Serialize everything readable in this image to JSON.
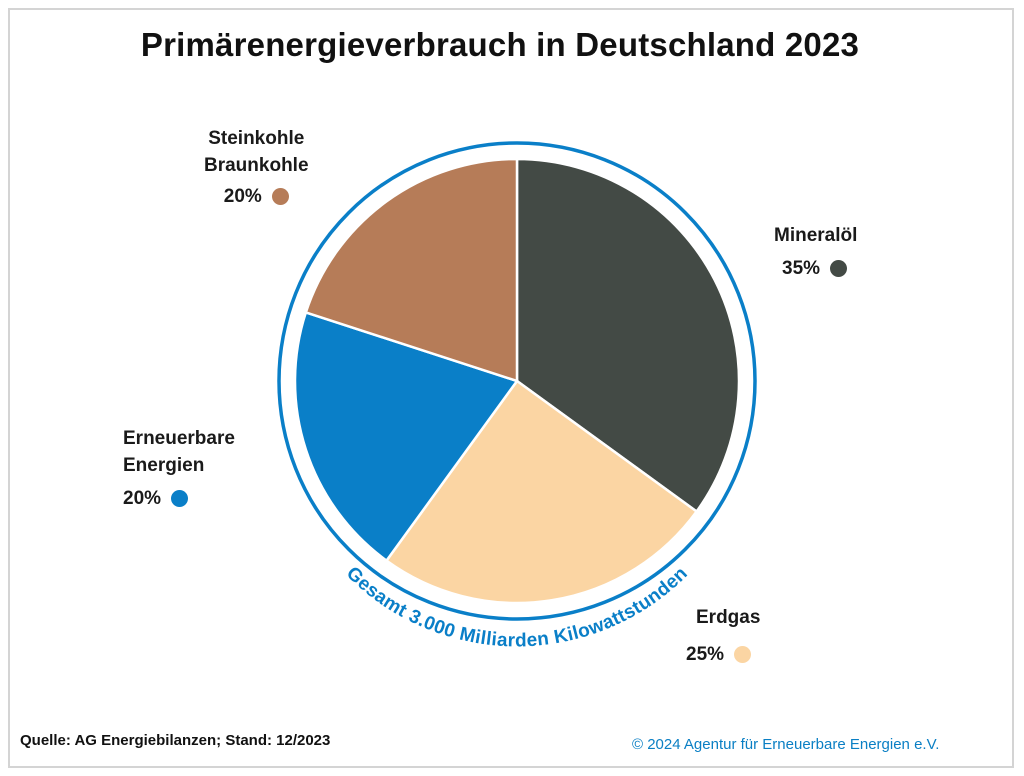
{
  "title": "Primärenergieverbrauch in Deutschland 2023",
  "chart_data": {
    "type": "pie",
    "title": "Primärenergieverbrauch in Deutschland 2023",
    "total_label": "Gesamt 3.000 Milliarden Kilowattstunden",
    "slices": [
      {
        "name": "Mineralöl",
        "value": 35,
        "label": "35%",
        "color": "#434a45"
      },
      {
        "name": "Erdgas",
        "value": 25,
        "label": "25%",
        "color": "#fbd5a3"
      },
      {
        "name": "Erneuerbare Energien",
        "value": 20,
        "label": "20%",
        "color": "#0a7fc8"
      },
      {
        "name": "Steinkohle Braunkohle",
        "value": 20,
        "label": "20%",
        "color": "#b67c58"
      }
    ]
  },
  "labels": {
    "mineraloel": {
      "name": "Mineralöl",
      "pct": "35%"
    },
    "erdgas": {
      "name": "Erdgas",
      "pct": "25%"
    },
    "erneuerbare": {
      "line1": "Erneuerbare",
      "line2": "Energien",
      "pct": "20%"
    },
    "kohle": {
      "line1": "Steinkohle",
      "line2": "Braunkohle",
      "pct": "20%"
    }
  },
  "colors": {
    "ring": "#0a7fc8",
    "mineraloel": "#434a45",
    "erdgas": "#fbd5a3",
    "erneuerbare": "#0a7fc8",
    "kohle": "#b67c58"
  },
  "footer": {
    "source": "Quelle: AG Energiebilanzen; Stand: 12/2023",
    "copyright": "© 2024 Agentur für Erneuerbare Energien e.V."
  }
}
